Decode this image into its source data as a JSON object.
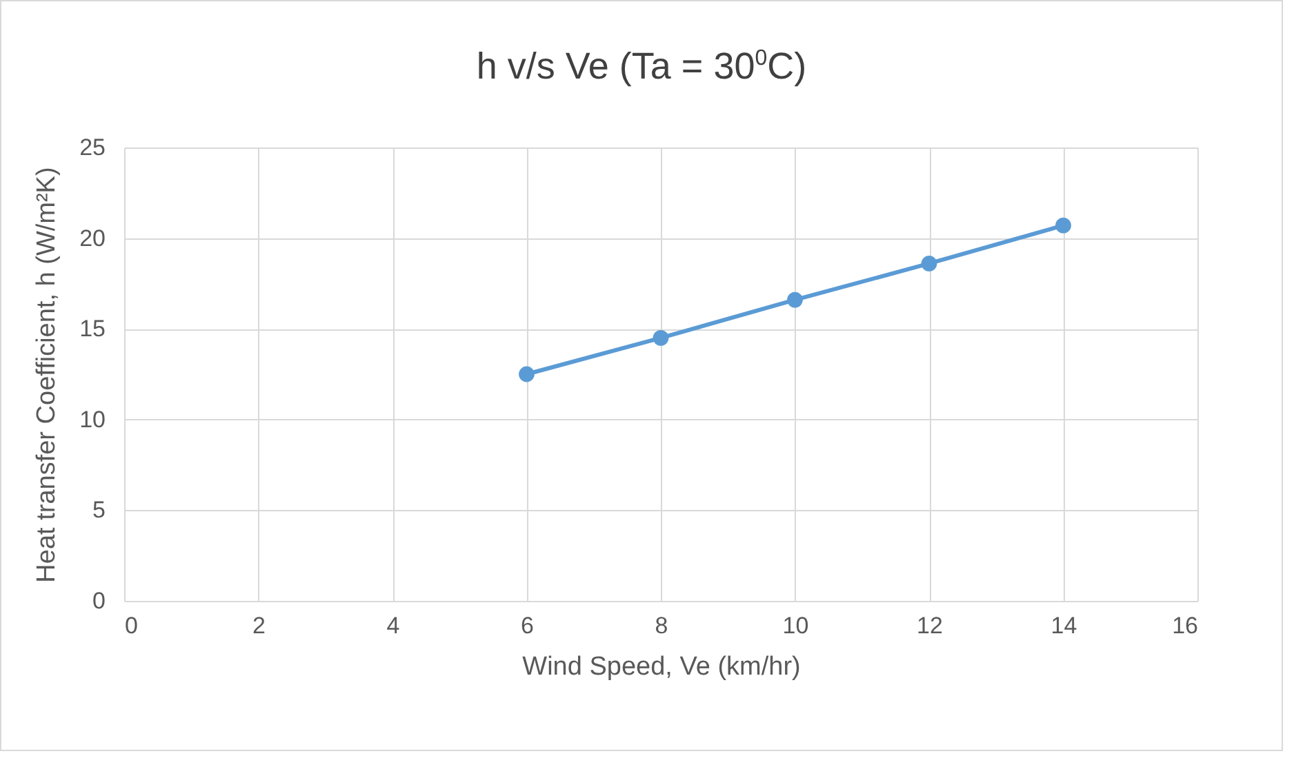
{
  "chart_data": {
    "type": "line",
    "title": "h v/s Ve (Ta = 30$^{0}$C)",
    "xlabel": "Wind Speed, Ve (km/hr)",
    "ylabel": "Heat transfer Coefficient, h (W/m²K)",
    "x": [
      6,
      8,
      10,
      12,
      14
    ],
    "series": [
      {
        "color": "#5b9bd5",
        "values": [
          12.5,
          14.5,
          16.6,
          18.6,
          20.7
        ]
      }
    ],
    "xlim": [
      0,
      16
    ],
    "xticks": [
      0,
      2,
      4,
      6,
      8,
      10,
      12,
      14,
      16
    ],
    "ylim": [
      0,
      25
    ],
    "yticks": [
      0,
      5,
      10,
      15,
      20,
      25
    ],
    "grid": true,
    "marker": "circle",
    "line_style": "solid"
  }
}
